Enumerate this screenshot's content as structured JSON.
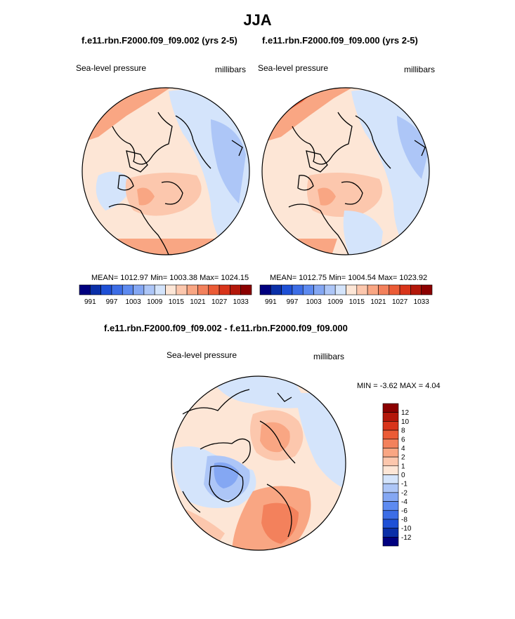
{
  "title": "JJA",
  "colors": {
    "scale": [
      "#00007f",
      "#0a2fa8",
      "#1e50d6",
      "#3c6de6",
      "#5d8af0",
      "#84a7f3",
      "#adc6f7",
      "#d4e4fb",
      "#fde6d6",
      "#fcc7ad",
      "#f9a683",
      "#f3815c",
      "#eb5b36",
      "#d8341a",
      "#b3170a",
      "#8b0000"
    ],
    "land_outline": "#000000"
  },
  "panels": [
    {
      "title": "f.e11.rbn.F2000.f09_f09.002 (yrs 2-5)",
      "variable": "Sea-level pressure",
      "units": "millibars",
      "stats": "MEAN= 1012.97  Min= 1003.38  Max= 1024.15"
    },
    {
      "title": "f.e11.rbn.F2000.f09_f09.000 (yrs 2-5)",
      "variable": "Sea-level pressure",
      "units": "millibars",
      "stats": "MEAN= 1012.75  Min= 1004.54  Max= 1023.92"
    },
    {
      "title": "f.e11.rbn.F2000.f09_f09.002 - f.e11.rbn.F2000.f09_f09.000",
      "variable": "Sea-level pressure",
      "units": "millibars",
      "stats": "MIN =  -3.62 MAX =  4.04"
    }
  ],
  "chart_data": [
    {
      "type": "heatmap",
      "projection": "north-polar-stereographic",
      "title": "f.e11.rbn.F2000.f09_f09.002 (yrs 2-5)",
      "variable": "Sea-level pressure",
      "units": "millibars",
      "mean": 1012.97,
      "min": 1003.38,
      "max": 1024.15,
      "legend": "horizontal-below",
      "colorbar_ticks": [
        "991",
        "997",
        "1003",
        "1009",
        "1015",
        "1021",
        "1027",
        "1033"
      ]
    },
    {
      "type": "heatmap",
      "projection": "north-polar-stereographic",
      "title": "f.e11.rbn.F2000.f09_f09.000 (yrs 2-5)",
      "variable": "Sea-level pressure",
      "units": "millibars",
      "mean": 1012.75,
      "min": 1004.54,
      "max": 1023.92,
      "legend": "horizontal-below",
      "colorbar_ticks": [
        "991",
        "997",
        "1003",
        "1009",
        "1015",
        "1021",
        "1027",
        "1033"
      ]
    },
    {
      "type": "heatmap",
      "projection": "north-polar-stereographic",
      "title": "f.e11.rbn.F2000.f09_f09.002 - f.e11.rbn.F2000.f09_f09.000",
      "variable": "Sea-level pressure",
      "units": "millibars",
      "min": -3.62,
      "max": 4.04,
      "legend": "vertical-right",
      "colorbar_ticks": [
        "12",
        "10",
        "8",
        "6",
        "4",
        "2",
        "1",
        "0",
        "-1",
        "-2",
        "-4",
        "-6",
        "-8",
        "-10",
        "-12"
      ]
    }
  ]
}
